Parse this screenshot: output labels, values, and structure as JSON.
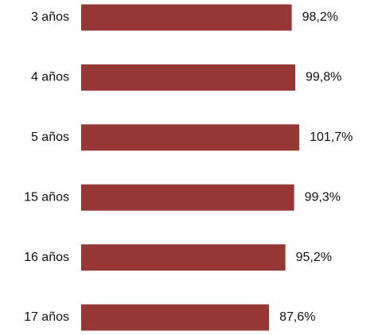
{
  "chart_data": {
    "type": "bar",
    "orientation": "horizontal",
    "categories": [
      "3 años",
      "4 años",
      "5 años",
      "15 años",
      "16 años",
      "17 años"
    ],
    "values": [
      98.2,
      99.8,
      101.7,
      99.3,
      95.2,
      87.6
    ],
    "value_labels": [
      "98,2%",
      "99,8%",
      "101,7%",
      "99,3%",
      "95,2%",
      "87,6%"
    ],
    "unit": "%",
    "xlim": [
      0,
      110
    ],
    "grid": false,
    "legend": "none",
    "axis_lines": false,
    "colors": {
      "bar": "#953735",
      "text": "#111111",
      "background": "#ffffff"
    }
  }
}
